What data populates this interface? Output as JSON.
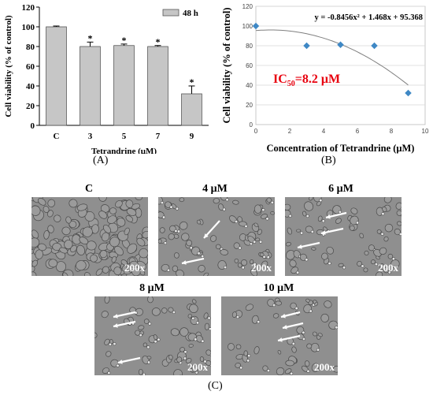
{
  "panel_labels": {
    "a": "(A)",
    "b": "(B)",
    "c": "(C)"
  },
  "chart_data": [
    {
      "type": "bar",
      "categories": [
        "C",
        "3",
        "5",
        "7",
        "9"
      ],
      "values": [
        100,
        80,
        81,
        80,
        32
      ],
      "errors": [
        0.8,
        4.5,
        1.5,
        1,
        8
      ],
      "significance": [
        "",
        "*",
        "*",
        "*",
        "*"
      ],
      "ylabel": "Cell viability (% of control)",
      "xlabel": "Tetrandrine (μM)",
      "ylim": [
        0,
        120
      ],
      "yticks": [
        0,
        20,
        40,
        60,
        80,
        100,
        120
      ],
      "legend": "48 h",
      "legend_position": "top-right",
      "bar_color": "#c6c6c6"
    },
    {
      "type": "scatter",
      "x": [
        0,
        3,
        5,
        7,
        9
      ],
      "y": [
        100,
        80,
        81,
        80,
        32
      ],
      "xlim": [
        0,
        10
      ],
      "ylim": [
        0,
        120
      ],
      "xticks": [
        0,
        2,
        4,
        6,
        8,
        10
      ],
      "yticks": [
        0,
        20,
        40,
        60,
        80,
        100,
        120
      ],
      "ylabel": "Cell viability (% of control)",
      "xlabel": "Concentration of Tetrandrine (μM)",
      "equation": "y = -0.8456x² + 1.468x + 95.368",
      "fit": {
        "a": -0.8456,
        "b": 1.468,
        "c": 95.368
      },
      "ic50_main": "IC",
      "ic50_sub": "50",
      "ic50_value": "=8.2 μM",
      "ic50_color": "#e8000e",
      "marker_color": "#3f88c5",
      "grid": true
    }
  ],
  "micrographs": [
    {
      "title": "C",
      "magnification": "200x",
      "arrows": 0
    },
    {
      "title": "4 μM",
      "magnification": "200x",
      "arrows": 2
    },
    {
      "title": "6 μM",
      "magnification": "200x",
      "arrows": 3
    },
    {
      "title": "8 μM",
      "magnification": "200x",
      "arrows": 3
    },
    {
      "title": "10 μM",
      "magnification": "200x",
      "arrows": 3
    }
  ]
}
